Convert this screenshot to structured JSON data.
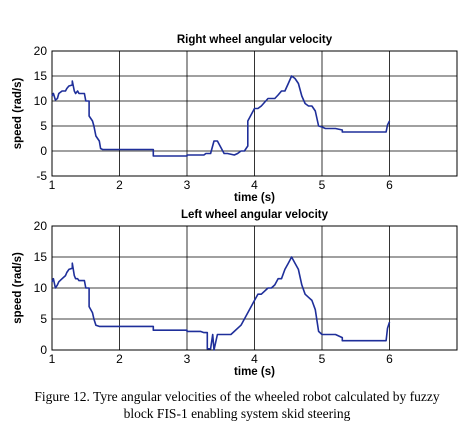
{
  "figure": {
    "caption_line1": "Figure 12. Tyre angular velocities of the wheeled robot calculated by fuzzy",
    "caption_line2": "block FIS-1 enabling system skid steering"
  },
  "chart_data": [
    {
      "type": "line",
      "title": "Right wheel angular velocity",
      "xlabel": "time (s)",
      "ylabel": "speed (rad/s)",
      "xlim": [
        1,
        7
      ],
      "ylim": [
        -5,
        20
      ],
      "xticks": [
        1,
        2,
        3,
        4,
        5,
        6
      ],
      "yticks": [
        -5,
        0,
        5,
        10,
        15,
        20
      ],
      "grid": true,
      "line_color": "#1f2f9a",
      "series": [
        {
          "x": [
            1.0,
            1.02,
            1.05,
            1.08,
            1.1,
            1.15,
            1.2,
            1.22,
            1.25,
            1.3,
            1.3,
            1.33,
            1.35,
            1.38,
            1.4,
            1.48,
            1.5,
            1.55,
            1.55,
            1.6,
            1.62,
            1.65,
            1.7,
            1.72,
            1.75,
            1.8,
            2.5,
            2.5,
            3.0,
            3.0,
            3.25,
            3.28,
            3.35,
            3.4,
            3.45,
            3.55,
            3.6,
            3.7,
            3.75,
            3.8,
            3.85,
            3.9,
            3.9,
            4.0,
            4.05,
            4.1,
            4.2,
            4.25,
            4.3,
            4.35,
            4.4,
            4.45,
            4.5,
            4.55,
            4.6,
            4.65,
            4.7,
            4.75,
            4.8,
            4.85,
            4.9,
            4.95,
            5.0,
            5.05,
            5.2,
            5.3,
            5.3,
            5.95,
            5.97,
            6.0
          ],
          "y": [
            11,
            11.5,
            10.2,
            10.5,
            11.5,
            12,
            12,
            12.5,
            13,
            13.2,
            14,
            12,
            11.5,
            12,
            11.5,
            11.5,
            10,
            10,
            7,
            6,
            5,
            3,
            2,
            0.5,
            0.3,
            0.3,
            0.3,
            -1,
            -1,
            -0.8,
            -0.8,
            -0.5,
            -0.5,
            2,
            2,
            -0.5,
            -0.5,
            -0.8,
            -0.5,
            0,
            0,
            1,
            6,
            8.5,
            8.5,
            9,
            10.5,
            10.5,
            10.5,
            11.2,
            12,
            12,
            13.5,
            15,
            14.5,
            13.5,
            11,
            9.5,
            9,
            9,
            8,
            5,
            4.8,
            4.5,
            4.5,
            4.2,
            3.8,
            3.8,
            5.2,
            6
          ]
        }
      ]
    },
    {
      "type": "line",
      "title": "Left wheel angular velocity",
      "xlabel": "time (s)",
      "ylabel": "speed (rad/s)",
      "xlim": [
        1,
        7
      ],
      "ylim": [
        0,
        20
      ],
      "xticks": [
        1,
        2,
        3,
        4,
        5,
        6
      ],
      "yticks": [
        0,
        5,
        10,
        15,
        20
      ],
      "grid": true,
      "line_color": "#1f2f9a",
      "series": [
        {
          "x": [
            1.0,
            1.02,
            1.05,
            1.08,
            1.1,
            1.15,
            1.2,
            1.22,
            1.25,
            1.3,
            1.3,
            1.33,
            1.35,
            1.38,
            1.4,
            1.48,
            1.5,
            1.55,
            1.55,
            1.6,
            1.62,
            1.65,
            1.7,
            1.75,
            1.8,
            2.5,
            2.5,
            3.0,
            3.0,
            3.1,
            3.2,
            3.25,
            3.3,
            3.3,
            3.35,
            3.38,
            3.4,
            3.45,
            3.65,
            3.7,
            3.75,
            3.8,
            3.85,
            3.9,
            4.0,
            4.05,
            4.1,
            4.2,
            4.25,
            4.3,
            4.35,
            4.4,
            4.45,
            4.5,
            4.55,
            4.6,
            4.65,
            4.7,
            4.75,
            4.8,
            4.85,
            4.9,
            4.95,
            5.0,
            5.05,
            5.2,
            5.3,
            5.3,
            5.95,
            5.97,
            6.0
          ],
          "y": [
            11,
            11.5,
            10,
            10.5,
            11,
            11.5,
            12,
            12.5,
            13,
            13.2,
            14,
            12,
            11.5,
            11.5,
            11.2,
            11.2,
            10,
            10,
            7,
            6,
            5,
            4,
            3.8,
            3.8,
            3.8,
            3.8,
            3.2,
            3.2,
            3,
            3,
            3,
            2.8,
            2.8,
            0.2,
            0.2,
            2.5,
            0,
            2.5,
            2.5,
            3,
            3.5,
            4,
            5,
            6,
            8,
            9,
            9,
            10,
            10,
            10.5,
            11.5,
            11.5,
            13,
            14,
            15,
            14,
            13,
            10.5,
            9,
            8.5,
            8,
            6.5,
            3,
            2.5,
            2.5,
            2.5,
            2,
            1.5,
            1.5,
            3.5,
            4.5
          ]
        }
      ]
    }
  ]
}
